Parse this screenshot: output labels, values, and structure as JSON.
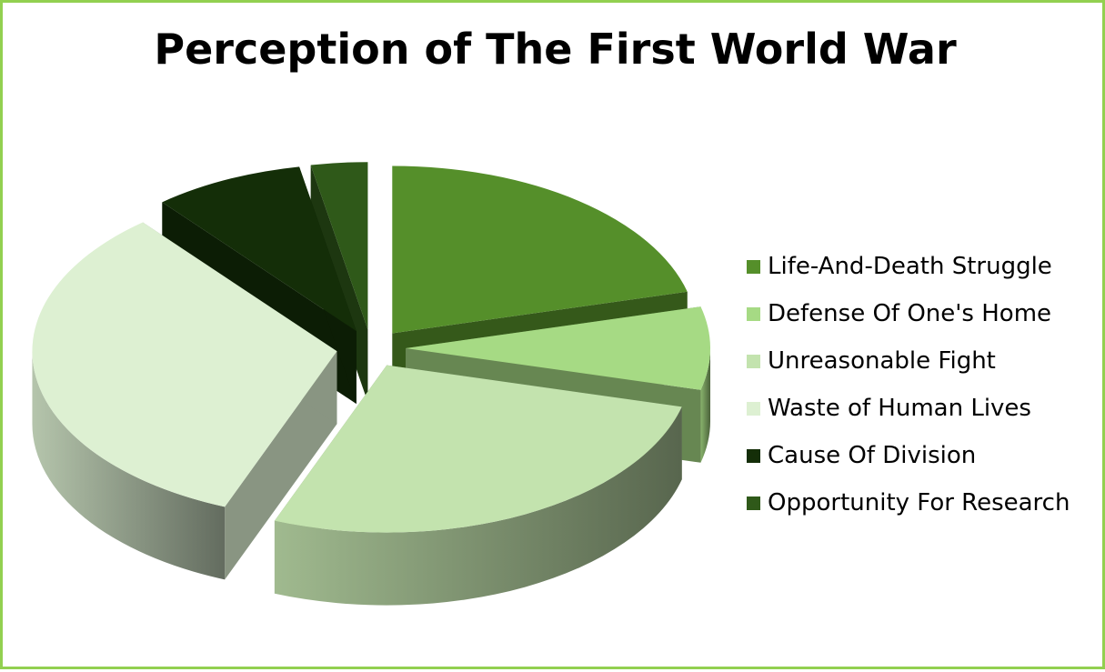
{
  "chart_data": {
    "type": "pie",
    "style": "3d-exploded",
    "title": "Perception of The First World War",
    "legend_position": "right",
    "categories": [
      "Life-And-Death Struggle",
      "Defense Of One's Home",
      "Unreasonable Fight",
      "Waste of Human Lives",
      "Cause Of Division",
      "Opportunity For Research"
    ],
    "values": [
      21,
      8,
      27,
      33,
      8,
      3
    ],
    "colors": [
      "#558F2A",
      "#A6DA84",
      "#C3E3AE",
      "#DDF0D2",
      "#142E08",
      "#2F5919"
    ],
    "border_color": "#92D050"
  }
}
